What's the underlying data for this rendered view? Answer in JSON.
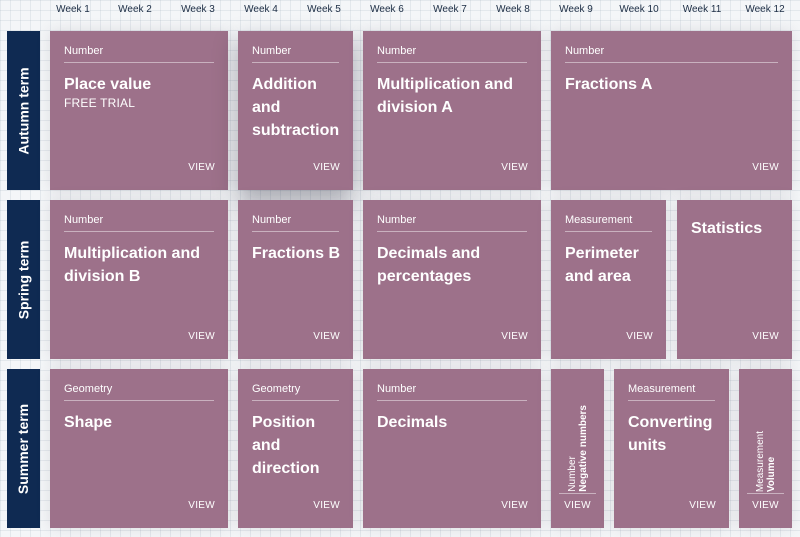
{
  "weeks": [
    "Week 1",
    "Week 2",
    "Week 3",
    "Week 4",
    "Week 5",
    "Week 6",
    "Week 7",
    "Week 8",
    "Week 9",
    "Week 10",
    "Week 11",
    "Week 12"
  ],
  "terms": {
    "autumn": {
      "label": "Autumn term",
      "cards": [
        {
          "category": "Number",
          "title": "Place value",
          "subtitle": "FREE TRIAL",
          "view": "VIEW"
        },
        {
          "category": "Number",
          "title": "Addition and subtraction",
          "view": "VIEW"
        },
        {
          "category": "Number",
          "title": "Multiplication and division A",
          "view": "VIEW"
        },
        {
          "category": "Number",
          "title": "Fractions A",
          "view": "VIEW"
        }
      ]
    },
    "spring": {
      "label": "Spring term",
      "cards": [
        {
          "category": "Number",
          "title": "Multiplication and division B",
          "view": "VIEW"
        },
        {
          "category": "Number",
          "title": "Fractions B",
          "view": "VIEW"
        },
        {
          "category": "Number",
          "title": "Decimals and percentages",
          "view": "VIEW"
        },
        {
          "category": "Measurement",
          "title": "Perimeter and area",
          "view": "VIEW"
        },
        {
          "title": "Statistics",
          "view": "VIEW"
        }
      ]
    },
    "summer": {
      "label": "Summer term",
      "cards": [
        {
          "category": "Geometry",
          "title": "Shape",
          "view": "VIEW"
        },
        {
          "category": "Geometry",
          "title": "Position and direction",
          "view": "VIEW"
        },
        {
          "category": "Number",
          "title": "Decimals",
          "view": "VIEW"
        },
        {
          "category": "Number",
          "title": "Negative numbers",
          "view": "VIEW"
        },
        {
          "category": "Measurement",
          "title": "Converting units",
          "view": "VIEW"
        },
        {
          "category": "Measurement",
          "title": "Volume",
          "view": "VIEW"
        }
      ]
    }
  },
  "colors": {
    "card": "#9d718a",
    "term_label_bg": "#0f2a52",
    "week_text": "#1c2d44"
  }
}
